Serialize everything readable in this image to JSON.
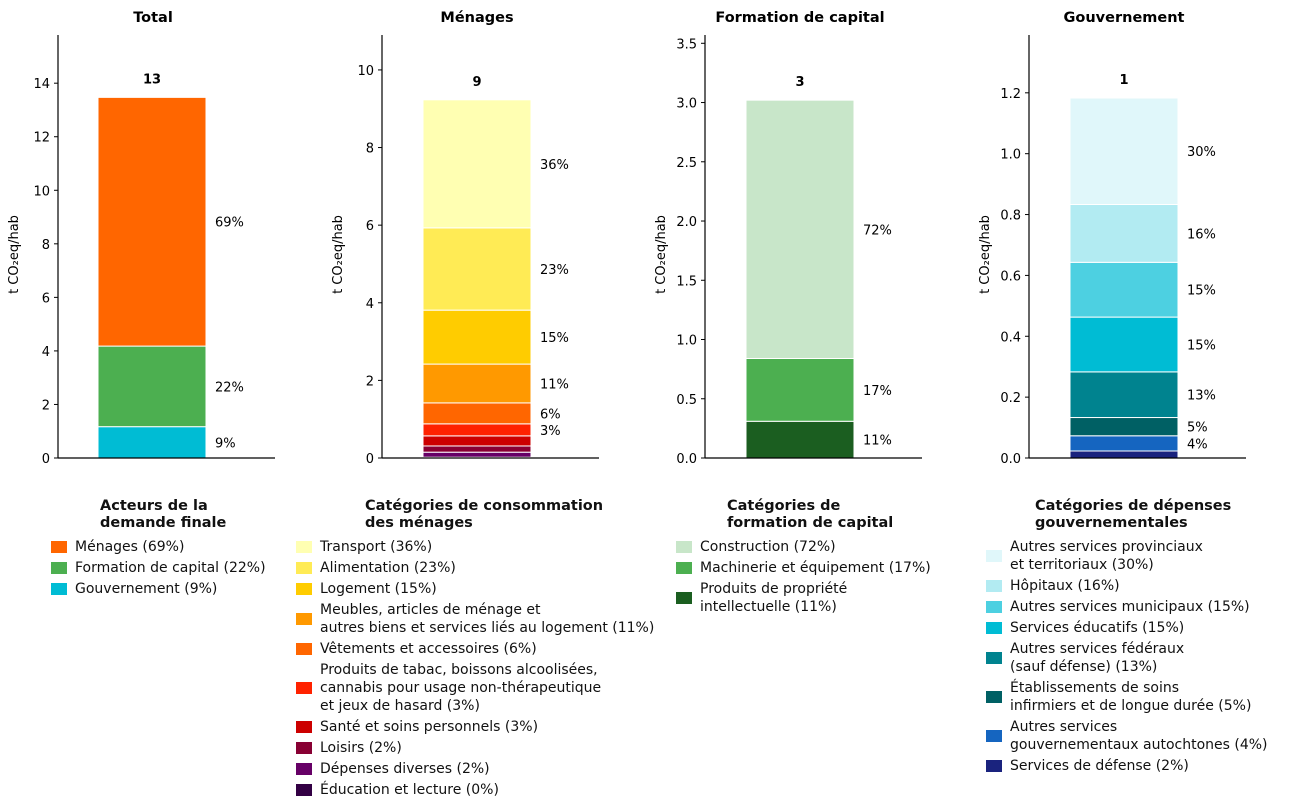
{
  "chart_data": [
    {
      "type": "bar",
      "stacked": true,
      "title": "Total",
      "ylabel": "t CO₂eq/hab",
      "ylim": [
        0,
        15.8
      ],
      "yticks": [
        0,
        2,
        4,
        6,
        8,
        10,
        12,
        14
      ],
      "total_label": "13",
      "legend_title": "Acteurs de la\ndemande finale",
      "series": [
        {
          "name": "Ménages (69%)",
          "value": 9.29,
          "pct_label": "69%",
          "color": "#ff6600"
        },
        {
          "name": "Formation de capital (22%)",
          "value": 3.01,
          "pct_label": "22%",
          "color": "#4caf50"
        },
        {
          "name": "Gouvernement (9%)",
          "value": 1.17,
          "pct_label": "9%",
          "color": "#00bcd4"
        }
      ]
    },
    {
      "type": "bar",
      "stacked": true,
      "title": "Ménages",
      "ylabel": "t CO₂eq/hab",
      "ylim": [
        0,
        10.9
      ],
      "yticks": [
        0,
        2,
        4,
        6,
        8,
        10
      ],
      "total_label": "9",
      "legend_title": "Catégories de consommation\ndes ménages",
      "series": [
        {
          "name": "Transport (36%)",
          "value": 3.3,
          "pct_label": "36%",
          "color": "#ffffb2"
        },
        {
          "name": "Alimentation (23%)",
          "value": 2.12,
          "pct_label": "23%",
          "color": "#ffeb55"
        },
        {
          "name": "Logement (15%)",
          "value": 1.39,
          "pct_label": "15%",
          "color": "#ffcc00"
        },
        {
          "name": "Meubles, articles de ménage et\nautres biens et services liés au logement (11%)",
          "value": 1.0,
          "pct_label": "11%",
          "color": "#ff9900"
        },
        {
          "name": "Vêtements et accessoires (6%)",
          "value": 0.54,
          "pct_label": "6%",
          "color": "#ff6600"
        },
        {
          "name": "Produits de tabac, boissons alcoolisées,\ncannabis pour usage non-thérapeutique\net jeux de hasard (3%)",
          "value": 0.31,
          "pct_label": "3%",
          "color": "#ff2200"
        },
        {
          "name": "Santé et soins personnels (3%)",
          "value": 0.26,
          "pct_label": "",
          "color": "#cc0000"
        },
        {
          "name": "Loisirs (2%)",
          "value": 0.16,
          "pct_label": "",
          "color": "#880033"
        },
        {
          "name": "Dépenses diverses (2%)",
          "value": 0.13,
          "pct_label": "",
          "color": "#660066"
        },
        {
          "name": "Éducation et lecture (0%)",
          "value": 0.02,
          "pct_label": "",
          "color": "#330044"
        }
      ]
    },
    {
      "type": "bar",
      "stacked": true,
      "title": "Formation de capital",
      "ylabel": "t CO₂eq/hab",
      "ylim": [
        0,
        3.57
      ],
      "yticks": [
        0.0,
        0.5,
        1.0,
        1.5,
        2.0,
        2.5,
        3.0,
        3.5
      ],
      "total_label": "3",
      "legend_title": "Catégories de\nformation de capital",
      "series": [
        {
          "name": "Construction (72%)",
          "value": 2.18,
          "pct_label": "72%",
          "color": "#c8e6c9"
        },
        {
          "name": "Machinerie et équipement (17%)",
          "value": 0.53,
          "pct_label": "17%",
          "color": "#4caf50"
        },
        {
          "name": "Produits de propriété\nintellectuelle (11%)",
          "value": 0.31,
          "pct_label": "11%",
          "color": "#1b5e20"
        }
      ]
    },
    {
      "type": "bar",
      "stacked": true,
      "title": "Gouvernement",
      "ylabel": "t CO₂eq/hab",
      "ylim": [
        0,
        1.39
      ],
      "yticks": [
        0.0,
        0.2,
        0.4,
        0.6,
        0.8,
        1.0,
        1.2
      ],
      "total_label": "1",
      "legend_title": "Catégories de dépenses\ngouvernementales",
      "series": [
        {
          "name": "Autres services provinciaux\net territoriaux (30%)",
          "value": 0.35,
          "pct_label": "30%",
          "color": "#e0f7fa"
        },
        {
          "name": "Hôpitaux (16%)",
          "value": 0.19,
          "pct_label": "16%",
          "color": "#b2ebf2"
        },
        {
          "name": "Autres services municipaux (15%)",
          "value": 0.18,
          "pct_label": "15%",
          "color": "#4dd0e1"
        },
        {
          "name": "Services éducatifs (15%)",
          "value": 0.18,
          "pct_label": "15%",
          "color": "#00bcd4"
        },
        {
          "name": "Autres services fédéraux\n(sauf défense) (13%)",
          "value": 0.15,
          "pct_label": "13%",
          "color": "#00838f"
        },
        {
          "name": "Établissements de soins\ninfirmiers et de longue durée (5%)",
          "value": 0.06,
          "pct_label": "5%",
          "color": "#006064"
        },
        {
          "name": "Autres services\ngouvernementaux autochtones (4%)",
          "value": 0.05,
          "pct_label": "4%",
          "color": "#1565c0"
        },
        {
          "name": "Services de défense (2%)",
          "value": 0.023,
          "pct_label": "",
          "color": "#1a237e"
        }
      ]
    }
  ]
}
